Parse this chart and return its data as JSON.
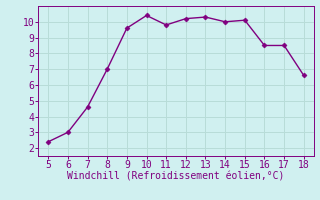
{
  "x": [
    5,
    6,
    7,
    8,
    9,
    10,
    11,
    12,
    13,
    14,
    15,
    16,
    17,
    18
  ],
  "y": [
    2.4,
    3.0,
    4.6,
    7.0,
    9.6,
    10.4,
    9.8,
    10.2,
    10.3,
    10.0,
    10.1,
    8.5,
    8.5,
    6.6
  ],
  "line_color": "#800080",
  "marker": "D",
  "marker_size": 2.5,
  "background_color": "#d0f0f0",
  "grid_color": "#b8dcd8",
  "xlabel": "Windchill (Refroidissement éolien,°C)",
  "xlabel_color": "#800080",
  "tick_color": "#800080",
  "xlim": [
    4.5,
    18.5
  ],
  "ylim": [
    1.5,
    11.0
  ],
  "xticks": [
    5,
    6,
    7,
    8,
    9,
    10,
    11,
    12,
    13,
    14,
    15,
    16,
    17,
    18
  ],
  "yticks": [
    2,
    3,
    4,
    5,
    6,
    7,
    8,
    9,
    10
  ],
  "spine_color": "#800080",
  "tick_fontsize": 7,
  "xlabel_fontsize": 7,
  "linewidth": 1.0
}
